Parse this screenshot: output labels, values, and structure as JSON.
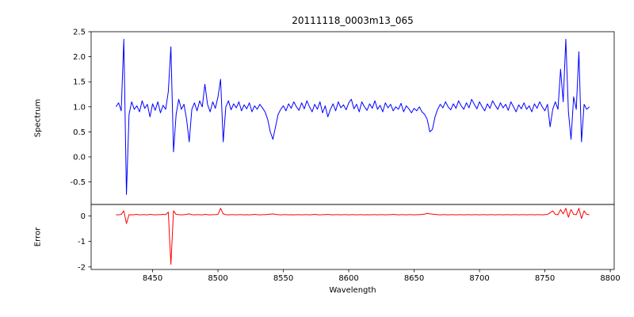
{
  "figure": {
    "title": "20111118_0003m13_065",
    "xlabel": "Wavelength",
    "ylabel_top": "Spectrum",
    "ylabel_bottom": "Error",
    "background": "#ffffff",
    "spine_color": "#000000"
  },
  "chart_data": [
    {
      "type": "line",
      "name": "spectrum",
      "title": "20111118_0003m13_065",
      "ylabel": "Spectrum",
      "color": "#0000ff",
      "grid": false,
      "legend": "none",
      "xlim": [
        8403,
        8803
      ],
      "ylim": [
        -0.95,
        2.5
      ],
      "yticks": [
        -0.5,
        0.0,
        0.5,
        1.0,
        1.5,
        2.0,
        2.5
      ],
      "ytick_labels": [
        "-0.5",
        "0.0",
        "0.5",
        "1.0",
        "1.5",
        "2.0",
        "2.5"
      ],
      "x_start": 8422,
      "x_step": 2,
      "values": [
        1.0,
        1.08,
        0.92,
        2.35,
        -0.75,
        0.85,
        1.1,
        0.95,
        1.02,
        0.9,
        1.12,
        0.97,
        1.05,
        0.8,
        1.06,
        0.93,
        1.1,
        0.88,
        1.03,
        0.95,
        1.3,
        2.2,
        0.1,
        0.85,
        1.15,
        0.95,
        1.05,
        0.75,
        0.3,
        0.95,
        1.08,
        0.92,
        1.12,
        1.0,
        1.45,
        1.05,
        0.9,
        1.1,
        0.97,
        1.2,
        1.55,
        0.3,
        1.0,
        1.12,
        0.94,
        1.06,
        0.98,
        1.1,
        0.92,
        1.04,
        0.96,
        1.08,
        0.9,
        1.02,
        0.95,
        1.05,
        0.98,
        0.9,
        0.75,
        0.5,
        0.35,
        0.6,
        0.85,
        0.95,
        1.02,
        0.92,
        1.06,
        0.97,
        1.1,
        1.0,
        0.93,
        1.08,
        0.96,
        1.12,
        1.0,
        0.9,
        1.05,
        0.95,
        1.1,
        0.88,
        1.02,
        0.8,
        0.95,
        1.06,
        0.92,
        1.1,
        0.98,
        1.04,
        0.94,
        1.08,
        1.15,
        0.96,
        1.05,
        0.9,
        1.1,
        1.0,
        0.93,
        1.06,
        0.97,
        1.12,
        0.95,
        1.03,
        0.9,
        1.08,
        0.98,
        1.05,
        0.92,
        1.0,
        0.95,
        1.07,
        0.9,
        1.02,
        0.96,
        0.88,
        0.97,
        0.92,
        1.0,
        0.9,
        0.85,
        0.75,
        0.5,
        0.55,
        0.8,
        0.95,
        1.05,
        0.98,
        1.1,
        1.0,
        0.94,
        1.06,
        0.97,
        1.12,
        1.02,
        0.95,
        1.08,
        0.98,
        1.15,
        1.05,
        0.96,
        1.1,
        1.0,
        0.92,
        1.06,
        0.97,
        1.12,
        1.03,
        0.95,
        1.08,
        0.98,
        1.05,
        0.93,
        1.1,
        1.0,
        0.9,
        1.04,
        0.96,
        1.08,
        0.95,
        1.02,
        0.9,
        1.06,
        0.97,
        1.1,
        1.0,
        0.92,
        1.05,
        0.6,
        0.95,
        1.1,
        0.95,
        1.75,
        1.1,
        2.35,
        0.9,
        0.35,
        1.2,
        0.95,
        2.1,
        0.3,
        1.05,
        0.95,
        1.0
      ]
    },
    {
      "type": "line",
      "name": "error",
      "ylabel": "Error",
      "xlabel": "Wavelength",
      "color": "#ff0000",
      "grid": false,
      "legend": "none",
      "xlim": [
        8403,
        8803
      ],
      "ylim": [
        -2.1,
        0.45
      ],
      "yticks": [
        0,
        -1,
        -2
      ],
      "ytick_labels": [
        "0",
        "-1",
        "-2"
      ],
      "xticks": [
        8450,
        8500,
        8550,
        8600,
        8650,
        8700,
        8750,
        8800
      ],
      "xtick_labels": [
        "8450",
        "8500",
        "8550",
        "8600",
        "8650",
        "8700",
        "8750",
        "8800"
      ],
      "x_start": 8422,
      "x_step": 2,
      "values": [
        0.05,
        0.04,
        0.06,
        0.2,
        -0.3,
        0.05,
        0.04,
        0.05,
        0.06,
        0.04,
        0.05,
        0.05,
        0.04,
        0.06,
        0.05,
        0.04,
        0.05,
        0.05,
        0.06,
        0.05,
        0.15,
        -1.9,
        0.2,
        0.06,
        0.05,
        0.04,
        0.05,
        0.06,
        0.08,
        0.05,
        0.04,
        0.05,
        0.05,
        0.04,
        0.06,
        0.05,
        0.04,
        0.05,
        0.05,
        0.06,
        0.3,
        0.08,
        0.05,
        0.04,
        0.05,
        0.05,
        0.04,
        0.05,
        0.05,
        0.04,
        0.05,
        0.04,
        0.05,
        0.06,
        0.05,
        0.04,
        0.05,
        0.05,
        0.06,
        0.07,
        0.08,
        0.06,
        0.05,
        0.04,
        0.05,
        0.05,
        0.04,
        0.05,
        0.04,
        0.05,
        0.05,
        0.04,
        0.05,
        0.05,
        0.04,
        0.05,
        0.06,
        0.05,
        0.04,
        0.05,
        0.05,
        0.06,
        0.05,
        0.04,
        0.05,
        0.05,
        0.04,
        0.05,
        0.05,
        0.04,
        0.05,
        0.05,
        0.04,
        0.05,
        0.05,
        0.04,
        0.05,
        0.04,
        0.05,
        0.05,
        0.04,
        0.05,
        0.05,
        0.04,
        0.05,
        0.05,
        0.06,
        0.05,
        0.04,
        0.05,
        0.05,
        0.04,
        0.05,
        0.05,
        0.04,
        0.05,
        0.05,
        0.06,
        0.07,
        0.1,
        0.08,
        0.07,
        0.06,
        0.05,
        0.04,
        0.05,
        0.05,
        0.04,
        0.05,
        0.05,
        0.04,
        0.05,
        0.05,
        0.04,
        0.05,
        0.05,
        0.04,
        0.05,
        0.05,
        0.04,
        0.05,
        0.05,
        0.04,
        0.05,
        0.05,
        0.04,
        0.05,
        0.05,
        0.04,
        0.05,
        0.05,
        0.04,
        0.05,
        0.05,
        0.04,
        0.05,
        0.05,
        0.04,
        0.05,
        0.05,
        0.04,
        0.05,
        0.05,
        0.04,
        0.05,
        0.06,
        0.12,
        0.2,
        0.06,
        0.05,
        0.25,
        0.08,
        0.3,
        -0.05,
        0.25,
        0.06,
        0.05,
        0.3,
        -0.1,
        0.2,
        0.06,
        0.05
      ]
    }
  ]
}
